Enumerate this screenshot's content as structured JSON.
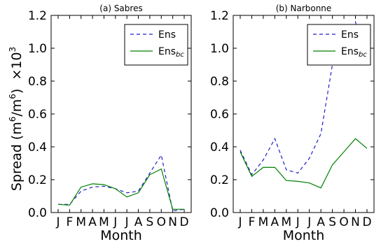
{
  "figure": {
    "ylabel": "Spread (m",
    "ylabel_unit_sup1": "6",
    "ylabel_mid": "/m",
    "ylabel_unit_sup2": "6",
    "ylabel_end": ")",
    "scale_prefix": "×10",
    "scale_exp": "3"
  },
  "chart_data": [
    {
      "type": "line",
      "title": "(a) Sabres",
      "xlabel": "Month",
      "ylabel": "Spread (m6/m6) ×10^3",
      "categories": [
        "J",
        "F",
        "M",
        "A",
        "M",
        "J",
        "J",
        "A",
        "S",
        "O",
        "N",
        "D"
      ],
      "ylim": [
        0,
        1.2
      ],
      "yticks": [
        "0.0",
        "0.2",
        "0.4",
        "0.6",
        "0.8",
        "1.0",
        "1.2"
      ],
      "legend_position": "top-right",
      "series": [
        {
          "name": "Ens",
          "color": "#1f1fcf",
          "style": "dashed",
          "values": [
            0.05,
            0.05,
            0.13,
            0.155,
            0.16,
            0.145,
            0.12,
            0.13,
            0.24,
            0.35,
            0.01,
            0.02
          ]
        },
        {
          "name": "Ens_bc",
          "color": "#008000",
          "style": "solid",
          "values": [
            0.05,
            0.045,
            0.155,
            0.175,
            0.17,
            0.145,
            0.095,
            0.12,
            0.23,
            0.265,
            0.02,
            0.02
          ]
        }
      ]
    },
    {
      "type": "line",
      "title": "(b) Narbonne",
      "xlabel": "Month",
      "ylabel": "",
      "categories": [
        "J",
        "F",
        "M",
        "A",
        "M",
        "J",
        "J",
        "A",
        "S",
        "O",
        "N",
        "D"
      ],
      "ylim": [
        0,
        1.2
      ],
      "yticks": [
        "0.0",
        "0.2",
        "0.4",
        "0.6",
        "0.8",
        "1.0",
        "1.2"
      ],
      "legend_position": "top-right",
      "series": [
        {
          "name": "Ens",
          "color": "#1f1fcf",
          "style": "dashed",
          "values": [
            0.38,
            0.23,
            0.32,
            0.45,
            0.26,
            0.24,
            0.33,
            0.48,
            0.9,
            0.93,
            1.16,
            0.9
          ]
        },
        {
          "name": "Ens_bc",
          "color": "#008000",
          "style": "solid",
          "values": [
            0.37,
            0.22,
            0.275,
            0.275,
            0.195,
            0.19,
            0.18,
            0.15,
            0.29,
            0.37,
            0.45,
            0.39
          ]
        }
      ]
    }
  ]
}
